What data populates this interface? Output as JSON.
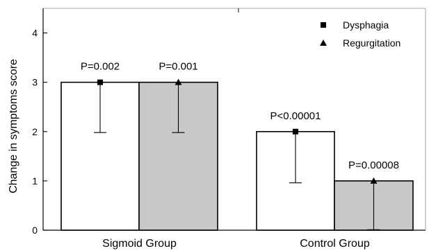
{
  "chart_data": {
    "type": "bar",
    "title": "",
    "xlabel": "",
    "ylabel": "Change in symptoms score",
    "ylim": [
      0,
      4.5
    ],
    "yticks": [
      0,
      1,
      2,
      3,
      4
    ],
    "grid": false,
    "legend_position": "top-right",
    "categories": [
      "Sigmoid Group",
      "Control Group"
    ],
    "series": [
      {
        "name": "Dysphagia",
        "marker": "square",
        "fill": "#ffffff",
        "values": [
          3,
          2
        ],
        "error_lower": [
          1.98,
          0.96
        ],
        "p_labels": [
          "P=0.002",
          "P<0.00001"
        ]
      },
      {
        "name": "Regurgitation",
        "marker": "triangle",
        "fill": "#c8c8c8",
        "values": [
          3,
          1
        ],
        "error_lower": [
          1.98,
          0.01
        ],
        "p_labels": [
          "P=0.001",
          "P=0.00008"
        ]
      }
    ]
  }
}
